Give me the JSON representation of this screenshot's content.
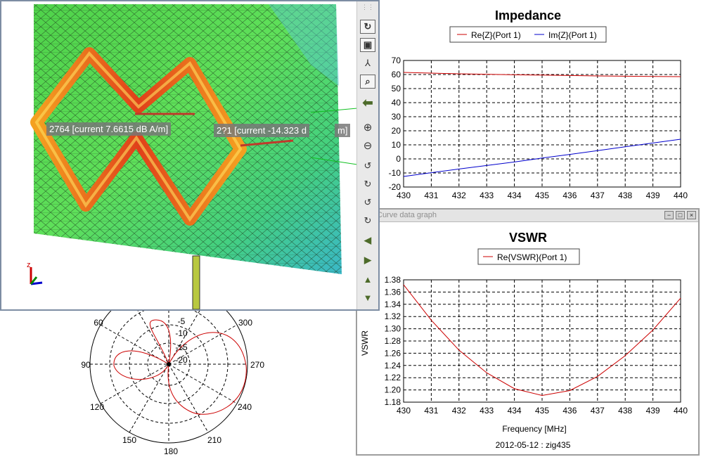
{
  "view3d": {
    "labels": [
      "2764 [current 7.6615 dB A/m]",
      "2?1 [current -14.323 d",
      "m]"
    ],
    "axis_label": "z"
  },
  "toolbar_icons": [
    "grip-icon",
    "rotate-z-icon",
    "zoom-fit-icon",
    "axes-icon",
    "zoom-region-icon",
    "back-icon",
    "zoom-in-icon",
    "zoom-out-icon",
    "rotate-phi-ccw-icon",
    "rotate-phi-cw-icon",
    "rotate-theta-ccw-icon",
    "rotate-theta-cw-icon",
    "pan-left-icon",
    "pan-right-icon",
    "pan-up-icon",
    "pan-down-icon"
  ],
  "polar": {
    "angle_labels": [
      "60",
      "300",
      "90",
      "270",
      "120",
      "240",
      "150",
      "210",
      "180"
    ],
    "radial_labels": [
      "-5",
      "-10",
      "-15",
      "-20"
    ]
  },
  "vswr_window": {
    "title": "Curve data graph",
    "buttons": [
      "−",
      "□",
      "×"
    ]
  },
  "chart_data": [
    {
      "type": "line",
      "title": "Impedance",
      "xlabel": "",
      "ylabel": "",
      "xlim": [
        430,
        440
      ],
      "ylim": [
        -20,
        70
      ],
      "x_ticks": [
        "430",
        "431",
        "432",
        "433",
        "434",
        "435",
        "436",
        "437",
        "438",
        "439",
        "440"
      ],
      "y_ticks": [
        "70",
        "60",
        "50",
        "40",
        "30",
        "20",
        "10",
        "0",
        "-10",
        "-20"
      ],
      "grid": true,
      "legend_position": "top",
      "series": [
        {
          "name": "Re{Z}(Port 1)",
          "color": "#cc0000",
          "x": [
            430,
            431,
            432,
            433,
            434,
            435,
            436,
            437,
            438,
            439,
            440
          ],
          "y": [
            61.5,
            61.0,
            60.5,
            60.2,
            59.8,
            59.6,
            59.3,
            59.0,
            58.8,
            58.6,
            58.5
          ]
        },
        {
          "name": "Im{Z}(Port 1)",
          "color": "#0000cc",
          "x": [
            430,
            431,
            432,
            433,
            434,
            435,
            436,
            437,
            438,
            439,
            440
          ],
          "y": [
            -12.5,
            -9.8,
            -7.2,
            -4.7,
            -2.2,
            0.6,
            3.2,
            5.9,
            8.6,
            11.3,
            14.0
          ]
        }
      ]
    },
    {
      "type": "line",
      "title": "VSWR",
      "xlabel": "Frequency [MHz]",
      "ylabel": "VSWR",
      "caption": "2012-05-12 : zig435",
      "xlim": [
        430,
        440
      ],
      "ylim": [
        1.18,
        1.38
      ],
      "x_ticks": [
        "430",
        "431",
        "432",
        "433",
        "434",
        "435",
        "436",
        "437",
        "438",
        "439",
        "440"
      ],
      "y_ticks": [
        "1.38",
        "1.36",
        "1.34",
        "1.32",
        "1.30",
        "1.28",
        "1.26",
        "1.24",
        "1.22",
        "1.20",
        "1.18"
      ],
      "grid": true,
      "legend_position": "top",
      "series": [
        {
          "name": "Re{VSWR}(Port 1)",
          "color": "#cc0000",
          "x": [
            430,
            431,
            432,
            433,
            434,
            435,
            436,
            437,
            438,
            439,
            440
          ],
          "y": [
            1.372,
            1.314,
            1.265,
            1.228,
            1.202,
            1.191,
            1.199,
            1.222,
            1.256,
            1.298,
            1.35
          ]
        }
      ]
    }
  ]
}
